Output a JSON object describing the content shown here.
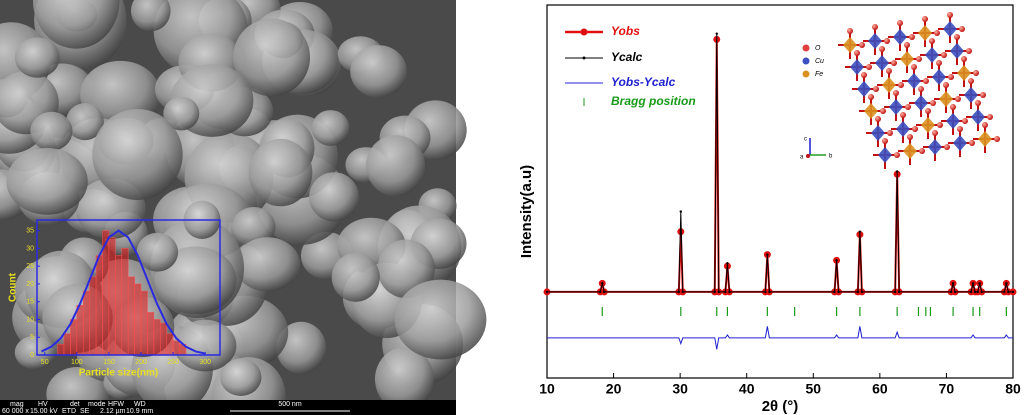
{
  "chart_data": [
    {
      "type": "histogram",
      "x_label": "Particle size(nm)",
      "y_label": "Count",
      "bins": [
        70,
        80,
        90,
        100,
        110,
        120,
        130,
        140,
        150,
        160,
        170,
        180,
        190,
        200,
        210,
        220,
        230,
        240,
        250,
        260,
        270
      ],
      "counts": [
        3,
        6,
        10,
        14,
        18,
        22,
        28,
        35,
        33,
        28,
        30,
        22,
        20,
        18,
        12,
        10,
        9,
        6,
        4,
        3
      ],
      "color": "#e02020",
      "curve": {
        "color": "#2a2ae0",
        "x": [
          45,
          60,
          75,
          90,
          105,
          120,
          135,
          150,
          165,
          180,
          195,
          210,
          225,
          240,
          255,
          270,
          285,
          300
        ],
        "values": [
          1.0,
          2.3,
          4.7,
          8.7,
          14.4,
          21.2,
          28,
          33.1,
          35,
          33.1,
          28,
          21.2,
          14.4,
          8.7,
          4.7,
          2.3,
          1.0,
          0.4
        ]
      },
      "xlim": [
        38,
        323
      ],
      "ylim": [
        0,
        38
      ],
      "xticks": [
        50,
        100,
        150,
        200,
        250,
        300
      ],
      "yticks": [
        0,
        5,
        10,
        15,
        20,
        25,
        30,
        35
      ]
    },
    {
      "type": "line",
      "x_label": "2θ (°)",
      "y_label": "Intensity(a.u)",
      "xlim": [
        10,
        80
      ],
      "ylim": [
        -30,
        100
      ],
      "xticks": [
        10,
        20,
        30,
        40,
        50,
        60,
        70,
        80
      ],
      "x": [
        10,
        18.0,
        18.3,
        18.6,
        29.8,
        30.1,
        30.4,
        35.2,
        35.5,
        35.8,
        36.8,
        37.1,
        37.4,
        42.8,
        43.1,
        43.4,
        53.2,
        53.5,
        53.8,
        56.7,
        57.0,
        57.3,
        62.3,
        62.6,
        62.9,
        70.7,
        71.0,
        71.3,
        73.7,
        74.0,
        74.3,
        74.7,
        75.0,
        75.3,
        78.7,
        79.0,
        79.3,
        80
      ],
      "series": [
        {
          "name": "Yobs",
          "color": "#e01010",
          "values": [
            0,
            0,
            3,
            0,
            0,
            21,
            0,
            0,
            88,
            0,
            0,
            9,
            0,
            0,
            13,
            0,
            0,
            11,
            0,
            0,
            20,
            0,
            0,
            41,
            0,
            0,
            3,
            0,
            0,
            3,
            0,
            0,
            3,
            0,
            0,
            3,
            0,
            0
          ]
        },
        {
          "name": "Ycalc",
          "color": "#000000",
          "values": [
            0,
            0,
            3,
            0,
            0,
            28,
            0,
            0,
            90,
            0,
            0,
            10,
            0,
            0,
            13,
            0,
            0,
            11,
            0,
            0,
            21,
            0,
            0,
            42,
            0,
            0,
            3,
            0,
            0,
            3,
            0,
            0,
            3,
            0,
            0,
            3,
            0,
            0
          ]
        },
        {
          "name": "Yobs-Ycalc",
          "color": "#2020d0",
          "values": [
            -16,
            -16,
            -16,
            -16,
            -16,
            -18,
            -16,
            -16,
            -20,
            -16,
            -16,
            -15,
            -16,
            -16,
            -12,
            -16,
            -16,
            -15,
            -16,
            -16,
            -12,
            -16,
            -16,
            -14,
            -16,
            -16,
            -16,
            -16,
            -16,
            -15,
            -16,
            -16,
            -16,
            -16,
            -16,
            -15,
            -16,
            -16
          ]
        }
      ],
      "bragg": {
        "name": "Bragg position",
        "color": "#1a9a1a",
        "x": [
          18.3,
          30.1,
          35.5,
          37.1,
          43.1,
          47.2,
          53.5,
          57.0,
          62.6,
          65.8,
          66.9,
          67.6,
          71.0,
          74.0,
          75.0,
          79.0
        ]
      },
      "inset_labels": {
        "o": "O",
        "cu": "Cu",
        "fe": "Fe",
        "a": "a",
        "b": "b",
        "c": "c"
      }
    }
  ],
  "sem_info": {
    "headers": [
      "mag",
      "HV",
      "det",
      "mode",
      "HFW",
      "WD"
    ],
    "values": [
      "60 000 x",
      "15.00 kV",
      "ETD",
      "SE",
      "2.12 µm",
      "10.9 mm"
    ],
    "scale": "500 nm"
  }
}
